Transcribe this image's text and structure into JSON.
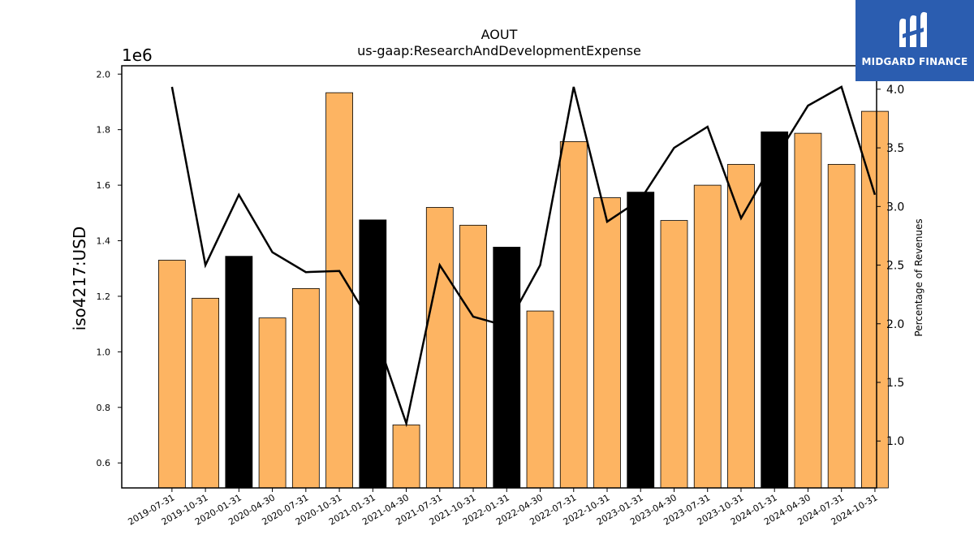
{
  "header": {
    "title": "AOUT",
    "subtitle": "us-gaap:ResearchAndDevelopmentExpense"
  },
  "logo": {
    "text": "MIDGARD FINANCE",
    "color": "#2b5db0"
  },
  "chart_data": {
    "type": "bar",
    "categories": [
      "2019-07-31",
      "2019-10-31",
      "2020-01-31",
      "2020-04-30",
      "2020-07-31",
      "2020-10-31",
      "2021-01-31",
      "2021-04-30",
      "2021-07-31",
      "2021-10-31",
      "2022-01-31",
      "2022-04-30",
      "2022-07-31",
      "2022-10-31",
      "2023-01-31",
      "2023-04-30",
      "2023-07-31",
      "2023-10-31",
      "2024-01-31",
      "2024-04-30",
      "2024-07-31",
      "2024-10-31"
    ],
    "values": [
      1330000,
      1193000,
      1344000,
      1122000,
      1228000,
      1933000,
      1475000,
      737000,
      1520000,
      1456000,
      1377000,
      1147000,
      1757000,
      1555000,
      1575000,
      1473000,
      1600000,
      1675000,
      1792000,
      1787000,
      1675000,
      1866000
    ],
    "bar_colors": [
      "#fdb462",
      "#fdb462",
      "#000000",
      "#fdb462",
      "#fdb462",
      "#fdb462",
      "#000000",
      "#fdb462",
      "#fdb462",
      "#fdb462",
      "#000000",
      "#fdb462",
      "#fdb462",
      "#fdb462",
      "#000000",
      "#fdb462",
      "#fdb462",
      "#fdb462",
      "#000000",
      "#fdb462",
      "#fdb462",
      "#fdb462"
    ],
    "line_values": [
      4.02,
      2.5,
      3.1,
      2.61,
      2.44,
      2.45,
      1.98,
      1.15,
      2.5,
      2.06,
      1.98,
      2.5,
      4.02,
      2.87,
      3.06,
      3.5,
      3.68,
      2.9,
      3.4,
      3.86,
      4.02,
      3.1
    ],
    "line_color": "#000000",
    "ylabel": "iso4217:USD",
    "y_offset_text": "1e6",
    "ylim": [
      0.51,
      2.03
    ],
    "yticks": [
      "0.6",
      "0.8",
      "1.0",
      "1.2",
      "1.4",
      "1.6",
      "1.8",
      "2.0"
    ],
    "y2label": "Percentage of Revenues",
    "y2lim": [
      0.6,
      4.2
    ],
    "y2ticks": [
      "1.0",
      "1.5",
      "2.0",
      "2.5",
      "3.0",
      "3.5",
      "4.0"
    ],
    "grid": false
  }
}
